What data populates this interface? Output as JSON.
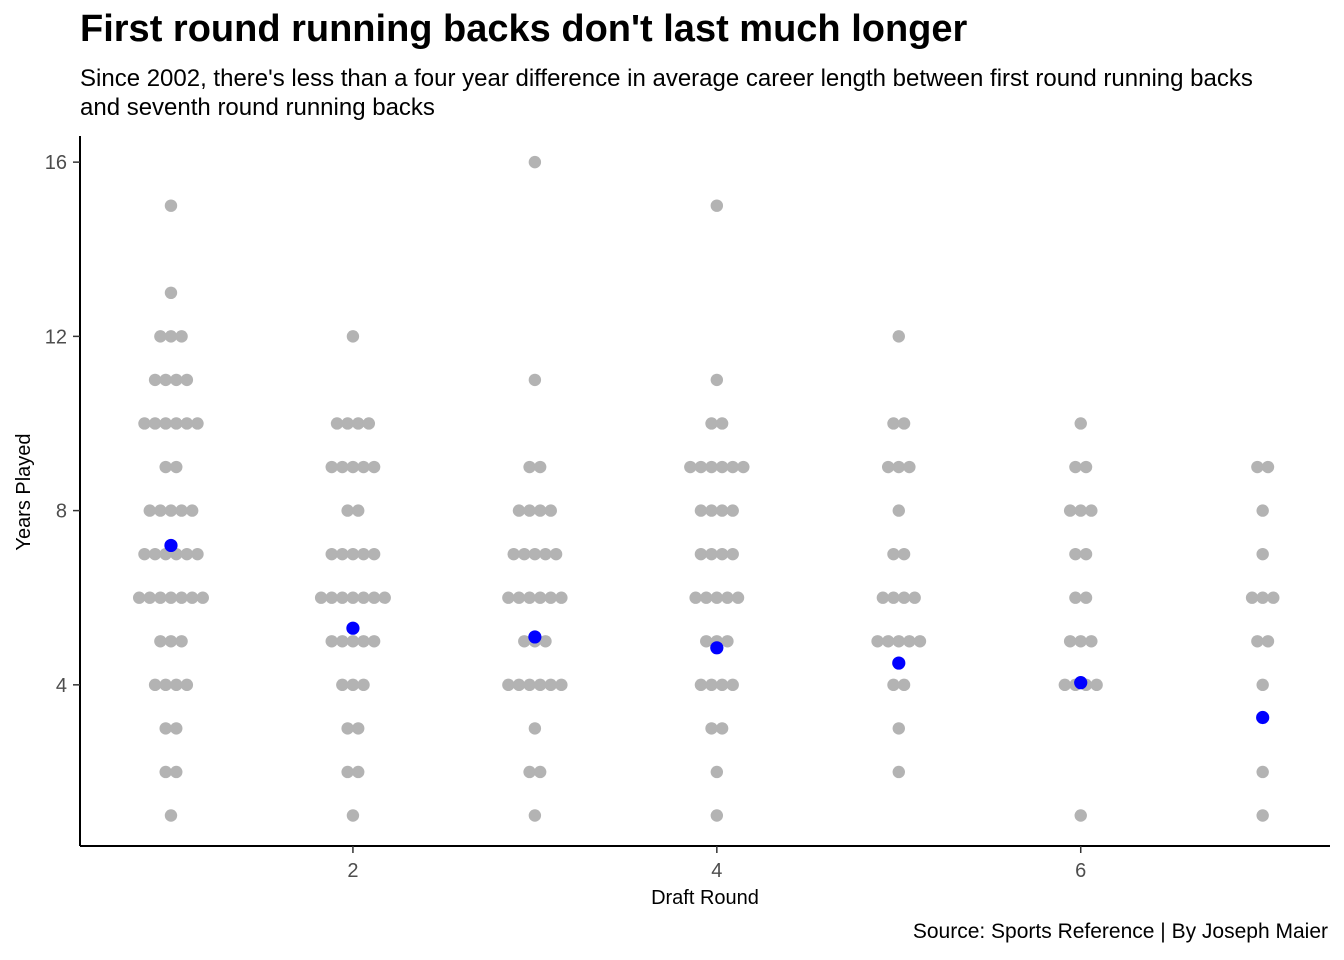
{
  "chart_data": {
    "type": "scatter",
    "title": "First round running backs don't last much longer",
    "subtitle": "Since 2002, there's less than a four year difference in average career length between first round running backs and seventh round running backs",
    "caption": "Source: Sports Reference | By Joseph Maier",
    "xlabel": "Draft Round",
    "ylabel": "Years Played",
    "xlim": [
      0.5,
      7.37
    ],
    "ylim": [
      0.3,
      16.6
    ],
    "x_ticks": [
      2,
      4,
      6
    ],
    "y_ticks": [
      4,
      8,
      12,
      16
    ],
    "grid": false,
    "colors": {
      "points": "#b3b3b3",
      "means": "#0000ff"
    },
    "series": [
      {
        "values": [
          {
            "x": 1,
            "counts": {
              "1": 1,
              "2": 2,
              "3": 2,
              "4": 4,
              "5": 3,
              "6": 7,
              "7": 6,
              "8": 5,
              "9": 2,
              "10": 6,
              "11": 4,
              "12": 3,
              "13": 1,
              "15": 1
            }
          },
          {
            "x": 2,
            "counts": {
              "1": 1,
              "2": 2,
              "3": 2,
              "4": 3,
              "5": 5,
              "6": 7,
              "7": 5,
              "8": 2,
              "9": 5,
              "10": 4,
              "12": 1
            }
          },
          {
            "x": 3,
            "counts": {
              "1": 1,
              "2": 2,
              "3": 1,
              "4": 6,
              "5": 3,
              "6": 6,
              "7": 5,
              "8": 4,
              "9": 2,
              "11": 1,
              "16": 1
            }
          },
          {
            "x": 4,
            "counts": {
              "1": 1,
              "2": 1,
              "3": 2,
              "4": 4,
              "5": 3,
              "6": 5,
              "7": 4,
              "8": 4,
              "9": 6,
              "10": 2,
              "11": 1,
              "15": 1
            }
          },
          {
            "x": 5,
            "counts": {
              "2": 1,
              "3": 1,
              "4": 2,
              "5": 5,
              "6": 4,
              "7": 2,
              "8": 1,
              "9": 3,
              "10": 2,
              "12": 1
            }
          },
          {
            "x": 6,
            "counts": {
              "1": 1,
              "4": 4,
              "5": 3,
              "6": 2,
              "7": 2,
              "8": 3,
              "9": 2,
              "10": 1
            }
          },
          {
            "x": 7,
            "counts": {
              "1": 1,
              "2": 1,
              "4": 1,
              "5": 2,
              "6": 3,
              "7": 1,
              "8": 1,
              "9": 2
            }
          }
        ]
      },
      {
        "name": "",
        "values": [
          {
            "x": 1,
            "y": 7.2
          },
          {
            "x": 2,
            "y": 5.3
          },
          {
            "x": 3,
            "y": 5.1
          },
          {
            "x": 4,
            "y": 4.85
          },
          {
            "x": 5,
            "y": 4.5
          },
          {
            "x": 6,
            "y": 4.05
          },
          {
            "x": 7,
            "y": 3.25
          }
        ]
      }
    ]
  }
}
